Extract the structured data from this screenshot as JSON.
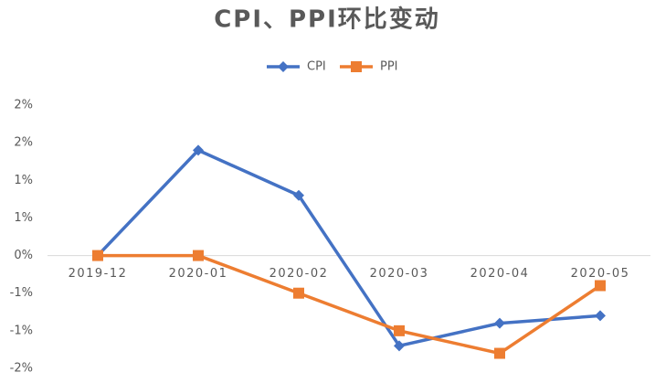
{
  "chart_data": {
    "type": "line",
    "title": "CPI、PPI环比变动",
    "categories": [
      "2019-12",
      "2020-01",
      "2020-02",
      "2020-03",
      "2020-04",
      "2020-05"
    ],
    "series": [
      {
        "name": "CPI",
        "color": "#4472c4",
        "marker": "diamond",
        "values": [
          0,
          1.4,
          0.8,
          -1.2,
          -0.9,
          -0.8
        ]
      },
      {
        "name": "PPI",
        "color": "#ed7d31",
        "marker": "square",
        "values": [
          0,
          0,
          -0.5,
          -1.0,
          -1.3,
          -0.4
        ]
      }
    ],
    "ylim": [
      -1.5,
      2.0
    ],
    "yticks": [
      {
        "value": 2.0,
        "label": "2%"
      },
      {
        "value": 1.5,
        "label": "2%"
      },
      {
        "value": 1.0,
        "label": "1%"
      },
      {
        "value": 0.5,
        "label": "1%"
      },
      {
        "value": 0,
        "label": "0%"
      },
      {
        "value": -0.5,
        "label": "-1%"
      },
      {
        "value": -1.0,
        "label": "-1%"
      },
      {
        "value": -1.5,
        "label": "-2%"
      }
    ],
    "grid": false,
    "legend": "top"
  }
}
